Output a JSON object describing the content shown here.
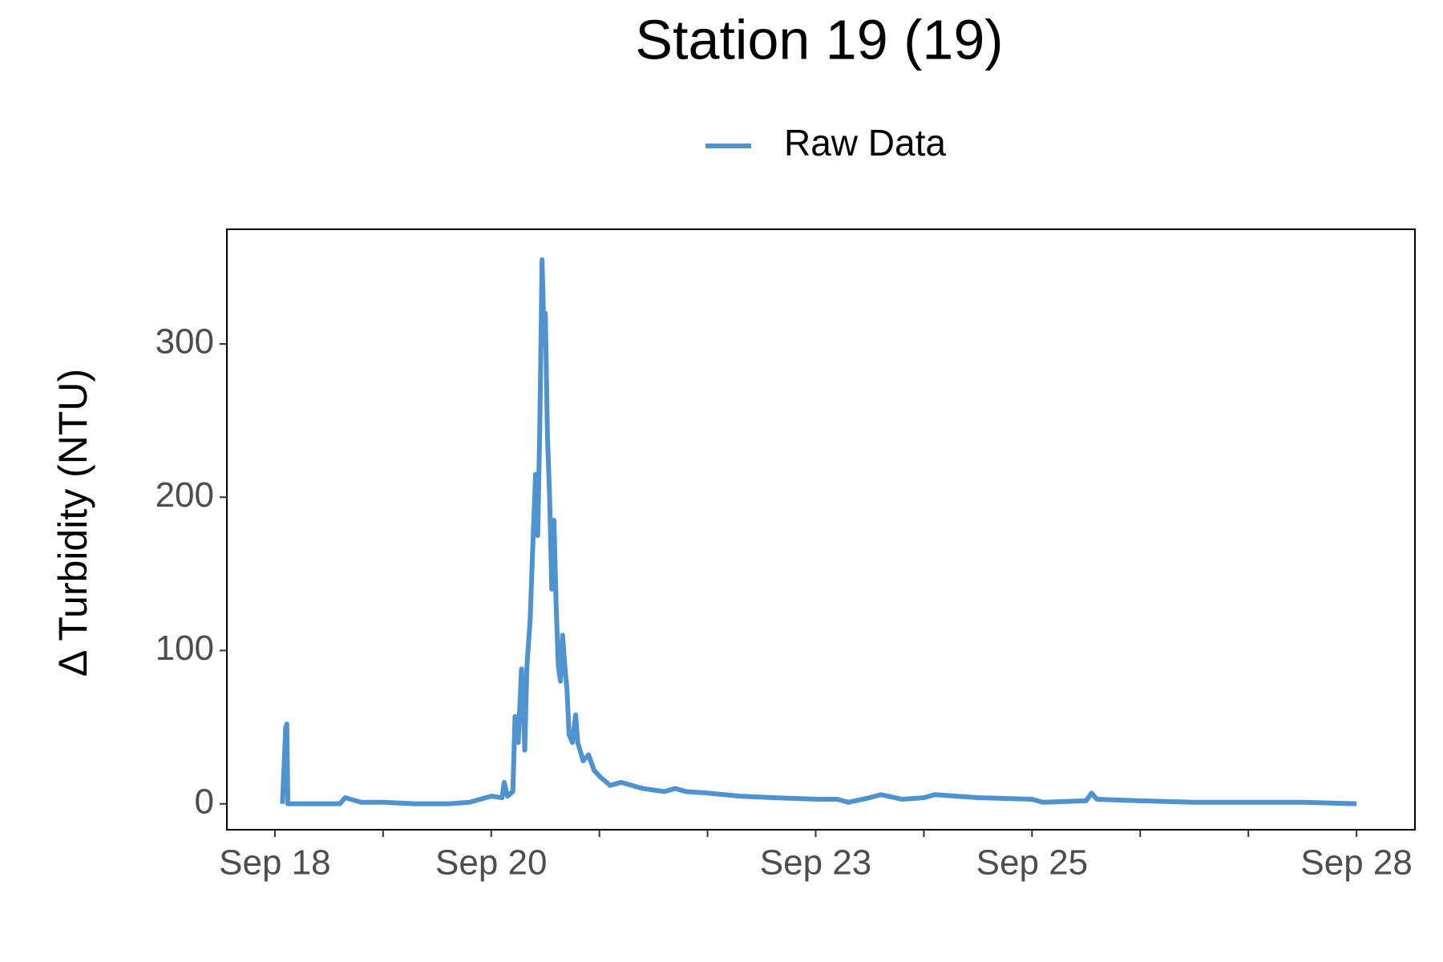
{
  "chart_data": {
    "type": "line",
    "title": "Station 19 (19)",
    "y_label": "Δ Turbidity (NTU)",
    "x": [
      18.07,
      18.1,
      18.11,
      18.12,
      18.3,
      18.6,
      18.65,
      18.7,
      18.8,
      19.0,
      19.3,
      19.6,
      19.8,
      20.0,
      20.1,
      20.12,
      20.15,
      20.2,
      20.22,
      20.25,
      20.28,
      20.3,
      20.31,
      20.33,
      20.36,
      20.38,
      20.41,
      20.43,
      20.45,
      20.47,
      20.49,
      20.5,
      20.52,
      20.54,
      20.56,
      20.58,
      20.6,
      20.62,
      20.64,
      20.66,
      20.68,
      20.7,
      20.72,
      20.75,
      20.78,
      20.8,
      20.85,
      20.9,
      20.95,
      21.0,
      21.1,
      21.2,
      21.4,
      21.6,
      21.7,
      21.8,
      22.0,
      22.3,
      22.6,
      23.0,
      23.2,
      23.3,
      23.5,
      23.6,
      23.8,
      24.0,
      24.1,
      24.5,
      25.0,
      25.1,
      25.5,
      25.55,
      25.6,
      26.0,
      26.5,
      27.0,
      27.5,
      28.0
    ],
    "series": [
      {
        "name": "Raw Data",
        "color": "#4e93cf",
        "values": [
          0,
          50,
          52,
          0,
          0,
          0,
          4,
          3,
          1,
          1,
          0,
          0,
          1,
          5,
          4,
          14,
          5,
          8,
          57,
          40,
          88,
          60,
          35,
          90,
          120,
          160,
          215,
          175,
          250,
          355,
          300,
          320,
          240,
          200,
          140,
          185,
          130,
          90,
          80,
          110,
          90,
          75,
          45,
          40,
          58,
          40,
          28,
          32,
          22,
          18,
          12,
          14,
          10,
          8,
          10,
          8,
          7,
          5,
          4,
          3,
          3,
          1,
          4,
          6,
          3,
          4,
          6,
          4,
          3,
          1,
          2,
          7,
          3,
          2,
          1,
          1,
          1,
          0
        ]
      }
    ],
    "xlim": [
      17.556,
      28.54
    ],
    "xticks": [
      {
        "value": 18,
        "label": "Sep 18"
      },
      {
        "value": 20,
        "label": "Sep 20"
      },
      {
        "value": 23,
        "label": "Sep 23"
      },
      {
        "value": 25,
        "label": "Sep 25"
      },
      {
        "value": 28,
        "label": "Sep 28"
      }
    ],
    "xminorticks": [
      19,
      21,
      22,
      24,
      26,
      27
    ],
    "ylim": [
      -16.9,
      374.8
    ],
    "yticks": [
      0,
      100,
      200,
      300
    ],
    "legend": "top"
  }
}
